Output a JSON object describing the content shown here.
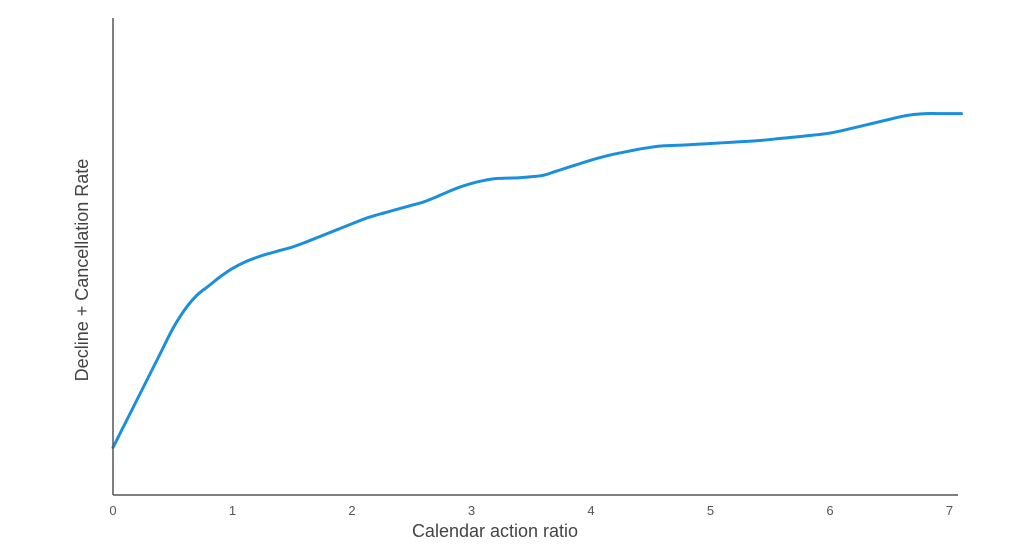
{
  "chart_data": {
    "type": "line",
    "title": "",
    "xlabel": "Calendar action ratio",
    "ylabel": "Decline + Cancellation Rate",
    "xlim": [
      0,
      7.1
    ],
    "ylim": [
      0,
      1
    ],
    "x_ticks": [
      "0",
      "1",
      "2",
      "3",
      "4",
      "5",
      "6",
      "7"
    ],
    "y_ticks": [],
    "grid": false,
    "legend": "none",
    "colors": {
      "series": "#1a8fdb",
      "axis": "#555555",
      "text": "#444444"
    },
    "series": [
      {
        "x": [
          0,
          0.1,
          0.2,
          0.3,
          0.4,
          0.5,
          0.6,
          0.7,
          0.8,
          0.9,
          1.0,
          1.1,
          1.2,
          1.3,
          1.4,
          1.5,
          1.6,
          1.7,
          1.8,
          1.9,
          2.0,
          2.1,
          2.2,
          2.3,
          2.4,
          2.5,
          2.6,
          2.7,
          2.8,
          2.9,
          3.0,
          3.1,
          3.2,
          3.3,
          3.4,
          3.5,
          3.6,
          3.7,
          3.8,
          3.9,
          4.0,
          4.1,
          4.2,
          4.3,
          4.4,
          4.5,
          4.6,
          4.8,
          5.0,
          5.2,
          5.4,
          5.6,
          5.8,
          6.0,
          6.2,
          6.4,
          6.5,
          6.6,
          6.7,
          6.8,
          6.9,
          7.0,
          7.1
        ],
        "y": [
          0.1,
          0.15,
          0.2,
          0.25,
          0.3,
          0.35,
          0.39,
          0.42,
          0.44,
          0.46,
          0.477,
          0.49,
          0.5,
          0.508,
          0.515,
          0.522,
          0.531,
          0.541,
          0.551,
          0.561,
          0.571,
          0.581,
          0.589,
          0.596,
          0.603,
          0.61,
          0.617,
          0.627,
          0.638,
          0.648,
          0.656,
          0.662,
          0.666,
          0.667,
          0.668,
          0.67,
          0.673,
          0.681,
          0.689,
          0.697,
          0.705,
          0.712,
          0.718,
          0.723,
          0.728,
          0.732,
          0.735,
          0.737,
          0.74,
          0.743,
          0.746,
          0.751,
          0.756,
          0.762,
          0.773,
          0.785,
          0.791,
          0.797,
          0.801,
          0.803,
          0.803,
          0.803,
          0.803
        ]
      }
    ]
  }
}
